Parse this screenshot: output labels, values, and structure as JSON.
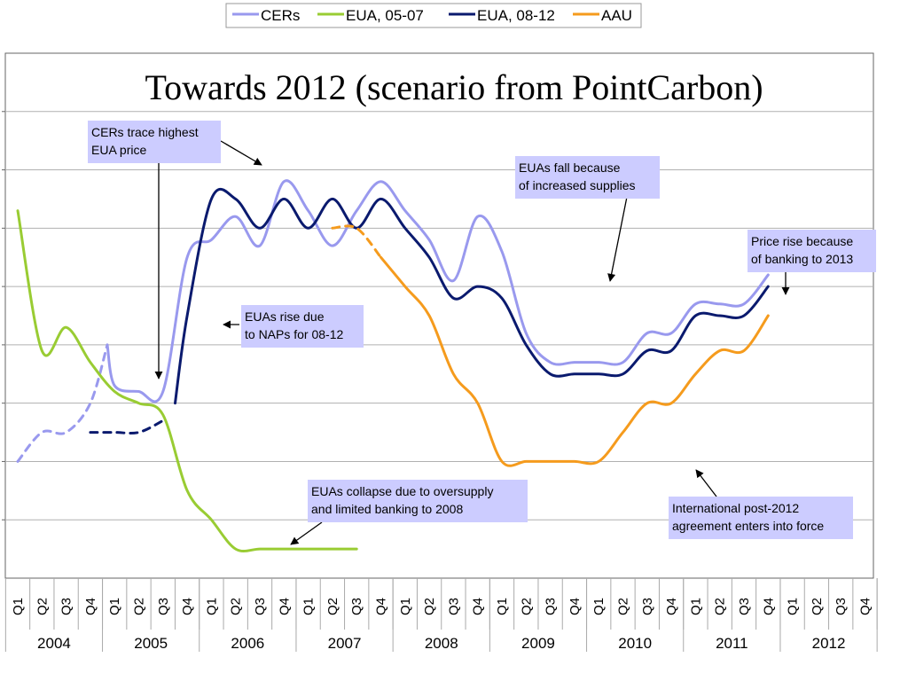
{
  "chart_data": {
    "type": "line",
    "title": "Towards 2012 (scenario from PointCarbon)",
    "legend_position": "top",
    "grid": true,
    "quarters": [
      "Q1",
      "Q2",
      "Q3",
      "Q4"
    ],
    "years": [
      "2004",
      "2005",
      "2006",
      "2007",
      "2008",
      "2009",
      "2010",
      "2011",
      "2012"
    ],
    "ylim": [
      0,
      9
    ],
    "series": [
      {
        "name": "CERs",
        "color": "#9999ee",
        "segments": [
          {
            "style": "dashed",
            "points": [
              [
                0,
                2.0
              ],
              [
                1,
                2.5
              ],
              [
                2,
                2.5
              ],
              [
                3,
                3.0
              ],
              [
                3.7,
                4.0
              ]
            ]
          },
          {
            "style": "solid",
            "points": [
              [
                3.7,
                4.0
              ],
              [
                4,
                3.3
              ],
              [
                5,
                3.2
              ],
              [
                6,
                3.2
              ],
              [
                7,
                5.5
              ],
              [
                8,
                5.8
              ],
              [
                9,
                6.2
              ],
              [
                10,
                5.7
              ],
              [
                11,
                6.8
              ],
              [
                12,
                6.3
              ],
              [
                13,
                5.7
              ],
              [
                14,
                6.3
              ],
              [
                15,
                6.8
              ],
              [
                16,
                6.3
              ],
              [
                17,
                5.8
              ],
              [
                18,
                5.1
              ],
              [
                19,
                6.2
              ],
              [
                20,
                5.6
              ],
              [
                21,
                4.2
              ],
              [
                22,
                3.7
              ],
              [
                23,
                3.7
              ],
              [
                24,
                3.7
              ],
              [
                25,
                3.7
              ],
              [
                26,
                4.2
              ],
              [
                27,
                4.2
              ],
              [
                28,
                4.7
              ],
              [
                29,
                4.7
              ],
              [
                30,
                4.7
              ],
              [
                31,
                5.2
              ]
            ]
          }
        ]
      },
      {
        "name": "EUA, 05-07",
        "color": "#99cc33",
        "segments": [
          {
            "style": "solid",
            "points": [
              [
                0,
                6.3
              ],
              [
                1,
                3.9
              ],
              [
                2,
                4.3
              ],
              [
                3,
                3.7
              ],
              [
                4,
                3.2
              ],
              [
                5,
                3.0
              ],
              [
                6,
                2.8
              ],
              [
                7,
                1.5
              ],
              [
                8,
                1.0
              ],
              [
                9,
                0.5
              ],
              [
                10,
                0.5
              ],
              [
                11,
                0.5
              ],
              [
                12,
                0.5
              ],
              [
                13,
                0.5
              ],
              [
                14,
                0.5
              ]
            ]
          }
        ]
      },
      {
        "name": "EUA, 08-12",
        "color": "#0a1a6e",
        "segments": [
          {
            "style": "dashed",
            "points": [
              [
                3,
                2.5
              ],
              [
                4,
                2.5
              ],
              [
                5,
                2.5
              ],
              [
                6,
                2.7
              ]
            ]
          },
          {
            "style": "solid",
            "points": [
              [
                6.5,
                3.0
              ],
              [
                7,
                4.5
              ],
              [
                8,
                6.5
              ],
              [
                9,
                6.5
              ],
              [
                10,
                6.0
              ],
              [
                11,
                6.5
              ],
              [
                12,
                6.0
              ],
              [
                13,
                6.5
              ],
              [
                14,
                6.0
              ],
              [
                15,
                6.5
              ],
              [
                16,
                6.0
              ],
              [
                17,
                5.5
              ],
              [
                18,
                4.8
              ],
              [
                19,
                5.0
              ],
              [
                20,
                4.8
              ],
              [
                21,
                4.0
              ],
              [
                22,
                3.5
              ],
              [
                23,
                3.5
              ],
              [
                24,
                3.5
              ],
              [
                25,
                3.5
              ],
              [
                26,
                3.9
              ],
              [
                27,
                3.9
              ],
              [
                28,
                4.5
              ],
              [
                29,
                4.5
              ],
              [
                30,
                4.5
              ],
              [
                31,
                5.0
              ]
            ]
          }
        ]
      },
      {
        "name": "AAU",
        "color": "#f59b1d",
        "segments": [
          {
            "style": "dashed",
            "points": [
              [
                13,
                6.0
              ],
              [
                14,
                6.0
              ],
              [
                15,
                5.5
              ]
            ]
          },
          {
            "style": "solid",
            "points": [
              [
                15,
                5.5
              ],
              [
                16,
                5.0
              ],
              [
                17,
                4.5
              ],
              [
                18,
                3.5
              ],
              [
                19,
                3.0
              ],
              [
                20,
                2.0
              ],
              [
                21,
                2.0
              ],
              [
                22,
                2.0
              ],
              [
                23,
                2.0
              ],
              [
                24,
                2.0
              ],
              [
                25,
                2.5
              ],
              [
                26,
                3.0
              ],
              [
                27,
                3.0
              ],
              [
                28,
                3.5
              ],
              [
                29,
                3.9
              ],
              [
                30,
                3.9
              ],
              [
                31,
                4.5
              ]
            ]
          }
        ]
      }
    ],
    "annotations": [
      {
        "text": "CERs trace highest\nEUA price"
      },
      {
        "text": "EUAs rise due\nto NAPs for 08-12"
      },
      {
        "text": "EUAs collapse due to oversupply\nand limited banking to 2008"
      },
      {
        "text": "EUAs fall because\nof increased supplies"
      },
      {
        "text": "Price rise because\nof banking to 2013"
      },
      {
        "text": "International post-2012\nagreement enters into force"
      }
    ]
  }
}
